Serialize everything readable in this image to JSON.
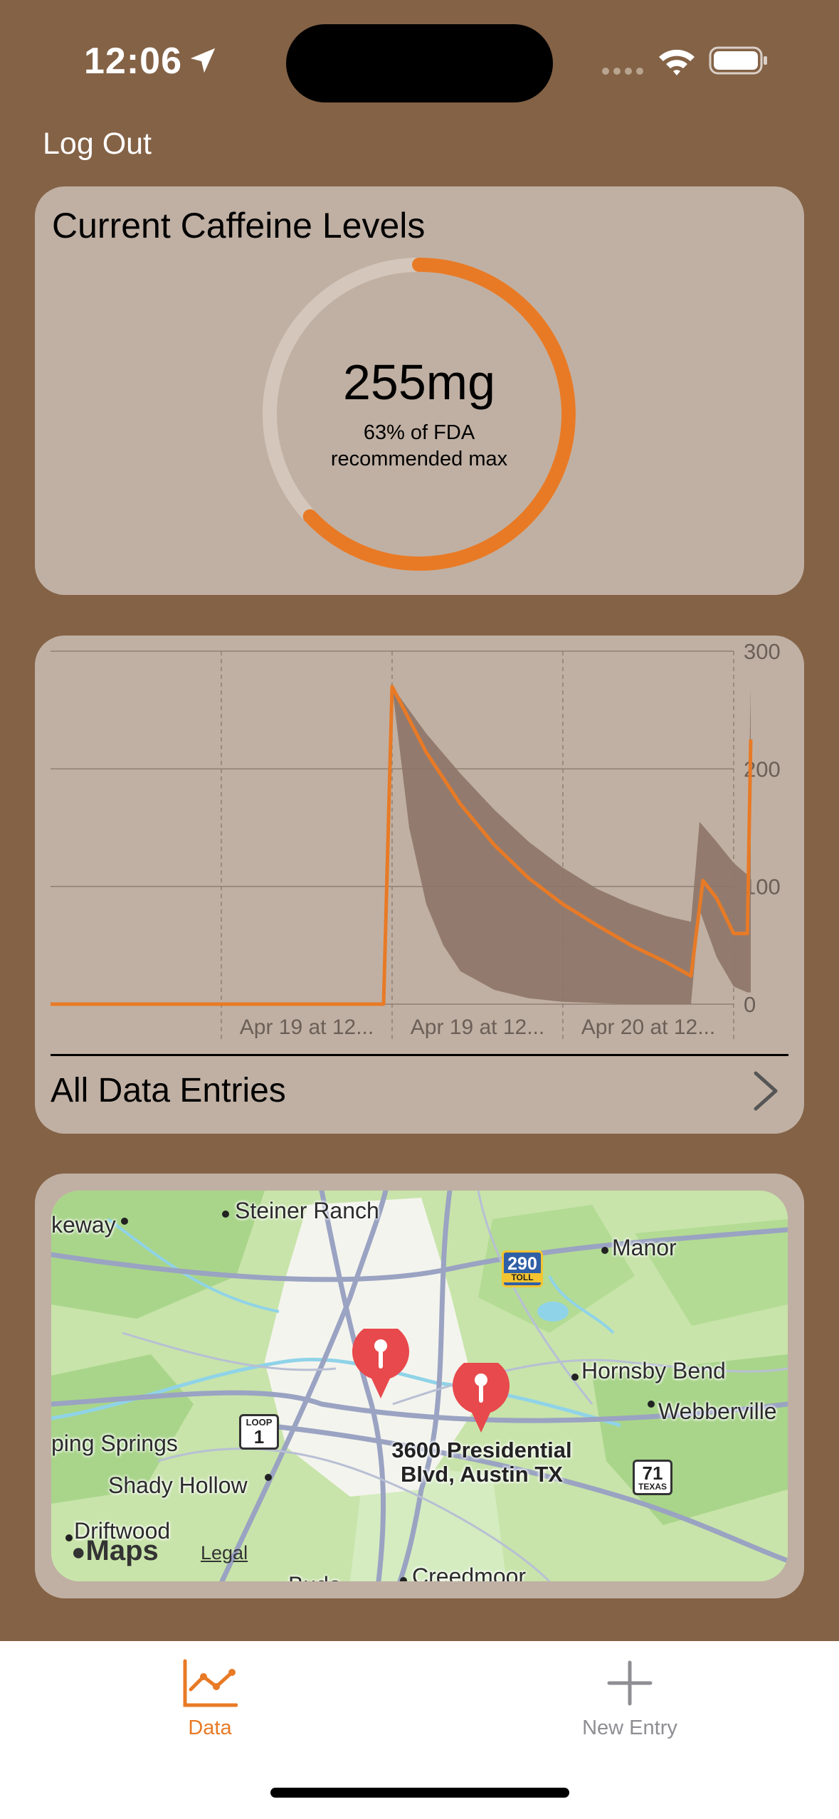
{
  "status_bar": {
    "time": "12:06"
  },
  "header": {
    "logout_label": "Log Out"
  },
  "caffeine_card": {
    "title": "Current Caffeine Levels",
    "value": "255mg",
    "caption_line1": "63% of FDA",
    "caption_line2": "recommended max",
    "progress_fraction": 0.63,
    "accent_color": "#e87a26",
    "track_color": "#d4c6ba"
  },
  "chart_data": {
    "type": "line",
    "x_ticks": [
      "Apr 19 at 12...",
      "Apr 19 at 12...",
      "Apr 20 at 12..."
    ],
    "y_ticks": [
      0,
      100,
      200,
      300
    ],
    "ylim": [
      0,
      300
    ],
    "x_range": [
      0,
      4
    ],
    "series": [
      {
        "values": [
          [
            0.0,
            0
          ],
          [
            1.95,
            0
          ],
          [
            2.0,
            270
          ],
          [
            2.2,
            214
          ],
          [
            2.4,
            170
          ],
          [
            2.6,
            135
          ],
          [
            2.8,
            107
          ],
          [
            3.0,
            85
          ],
          [
            3.2,
            67
          ],
          [
            3.4,
            50
          ],
          [
            3.6,
            36
          ],
          [
            3.75,
            24
          ],
          [
            3.82,
            105
          ],
          [
            3.9,
            90
          ],
          [
            4.0,
            60
          ],
          [
            4.08,
            60
          ],
          [
            4.1,
            225
          ]
        ],
        "color": "#e87a26"
      }
    ],
    "band": {
      "upper": [
        [
          2.0,
          270
        ],
        [
          2.2,
          230
        ],
        [
          2.4,
          196
        ],
        [
          2.6,
          165
        ],
        [
          2.8,
          138
        ],
        [
          3.0,
          116
        ],
        [
          3.2,
          98
        ],
        [
          3.4,
          85
        ],
        [
          3.6,
          75
        ],
        [
          3.75,
          70
        ],
        [
          3.8,
          155
        ],
        [
          3.9,
          138
        ],
        [
          4.0,
          120
        ],
        [
          4.08,
          110
        ],
        [
          4.1,
          270
        ]
      ],
      "lower": [
        [
          2.0,
          270
        ],
        [
          2.1,
          150
        ],
        [
          2.2,
          85
        ],
        [
          2.3,
          50
        ],
        [
          2.4,
          28
        ],
        [
          2.6,
          12
        ],
        [
          2.8,
          5
        ],
        [
          3.0,
          2
        ],
        [
          3.4,
          0
        ],
        [
          3.75,
          0
        ],
        [
          3.8,
          80
        ],
        [
          3.9,
          40
        ],
        [
          4.0,
          15
        ],
        [
          4.08,
          10
        ],
        [
          4.1,
          10
        ]
      ],
      "color": "#8d7668"
    },
    "grid": true
  },
  "entries_row": {
    "label": "All Data Entries"
  },
  "map": {
    "places": [
      "Steiner Ranch",
      "keway",
      "Manor",
      "Hornsby Bend",
      "Webberville",
      "ping Springs",
      "Shady Hollow",
      "Driftwood",
      "Creedmoor",
      "Buda"
    ],
    "pin_label_line1": "3600 Presidential",
    "pin_label_line2": "Blvd, Austin TX",
    "logo": "Maps",
    "legal": "Legal",
    "shields": {
      "toll_290": "290",
      "toll_text": "TOLL",
      "loop": "LOOP",
      "loop_num": "1",
      "texas_num": "71",
      "texas_text": "TEXAS"
    }
  },
  "tabbar": {
    "tabs": [
      {
        "label": "Data",
        "icon": "line-chart-icon",
        "active": true
      },
      {
        "label": "New Entry",
        "icon": "plus-icon",
        "active": false
      }
    ],
    "active_color": "#e87a26",
    "inactive_color": "#8e8e93"
  }
}
